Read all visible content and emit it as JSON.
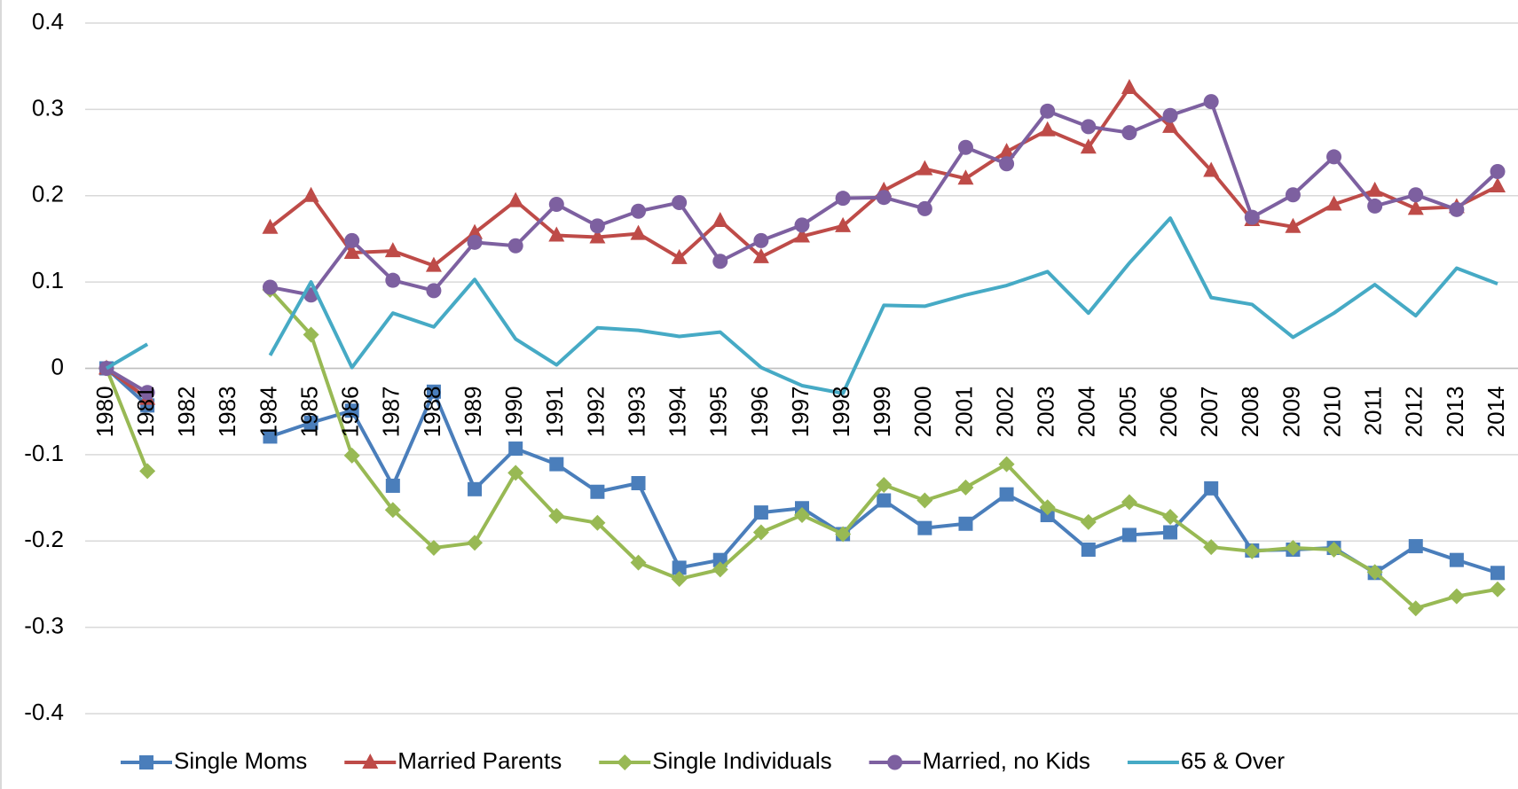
{
  "chart_data": {
    "type": "line",
    "categories": [
      "1980",
      "1981",
      "1982",
      "1983",
      "1984",
      "1985",
      "1986",
      "1987",
      "1988",
      "1989",
      "1990",
      "1991",
      "1992",
      "1993",
      "1994",
      "1995",
      "1996",
      "1997",
      "1998",
      "1999",
      "2000",
      "2001",
      "2002",
      "2003",
      "2004",
      "2005",
      "2006",
      "2007",
      "2008",
      "2009",
      "2010",
      "2011",
      "2012",
      "2013",
      "2014"
    ],
    "ylim": [
      -0.4,
      0.4
    ],
    "yticks": [
      0.4,
      0.3,
      0.2,
      0.1,
      0,
      -0.1,
      -0.2,
      -0.3,
      -0.4
    ],
    "grid": true,
    "legend": "bottom",
    "series": [
      {
        "name": "Single Moms",
        "color": "#4a7ebb",
        "marker": "square",
        "values": [
          0,
          -0.043,
          null,
          null,
          -0.079,
          -0.063,
          -0.049,
          -0.136,
          -0.027,
          -0.14,
          -0.093,
          -0.111,
          -0.143,
          -0.133,
          -0.231,
          -0.222,
          -0.167,
          -0.162,
          -0.192,
          -0.153,
          -0.185,
          -0.18,
          -0.146,
          -0.17,
          -0.21,
          -0.193,
          -0.19,
          -0.139,
          -0.211,
          -0.21,
          -0.208,
          -0.237,
          -0.206,
          -0.222,
          -0.237
        ]
      },
      {
        "name": "Married Parents",
        "color": "#be4b48",
        "marker": "triangle",
        "values": [
          0,
          -0.035,
          null,
          null,
          0.163,
          0.2,
          0.134,
          0.136,
          0.119,
          0.157,
          0.194,
          0.154,
          0.152,
          0.156,
          0.128,
          0.171,
          0.129,
          0.153,
          0.165,
          0.206,
          0.231,
          0.22,
          0.251,
          0.276,
          0.256,
          0.325,
          0.28,
          0.229,
          0.172,
          0.164,
          0.19,
          0.206,
          0.185,
          0.187,
          0.211
        ]
      },
      {
        "name": "Single Individuals",
        "color": "#98b954",
        "marker": "diamond",
        "values": [
          0,
          -0.119,
          null,
          null,
          0.091,
          0.039,
          -0.101,
          -0.164,
          -0.208,
          -0.202,
          -0.121,
          -0.171,
          -0.179,
          -0.225,
          -0.244,
          -0.233,
          -0.19,
          -0.17,
          -0.192,
          -0.135,
          -0.153,
          -0.138,
          -0.111,
          -0.161,
          -0.178,
          -0.155,
          -0.172,
          -0.207,
          -0.212,
          -0.208,
          -0.21,
          -0.236,
          -0.278,
          -0.264,
          -0.256
        ]
      },
      {
        "name": "Married, no Kids",
        "color": "#7d60a0",
        "marker": "circle",
        "values": [
          0,
          -0.028,
          null,
          null,
          0.094,
          0.085,
          0.148,
          0.102,
          0.09,
          0.146,
          0.142,
          0.19,
          0.165,
          0.182,
          0.192,
          0.124,
          0.148,
          0.166,
          0.197,
          0.198,
          0.185,
          0.256,
          0.237,
          0.298,
          0.28,
          0.273,
          0.293,
          0.309,
          0.175,
          0.201,
          0.245,
          0.188,
          0.201,
          0.184,
          0.228
        ]
      },
      {
        "name": "65 & Over",
        "color": "#46aac5",
        "marker": "none",
        "values": [
          0,
          0.028,
          null,
          null,
          0.015,
          0.1,
          0.001,
          0.064,
          0.048,
          0.103,
          0.034,
          0.004,
          0.047,
          0.044,
          0.037,
          0.042,
          0.001,
          -0.02,
          -0.029,
          0.073,
          0.072,
          0.085,
          0.096,
          0.112,
          0.064,
          0.122,
          0.174,
          0.082,
          0.074,
          0.036,
          0.064,
          0.097,
          0.061,
          0.116,
          0.098
        ]
      }
    ]
  }
}
